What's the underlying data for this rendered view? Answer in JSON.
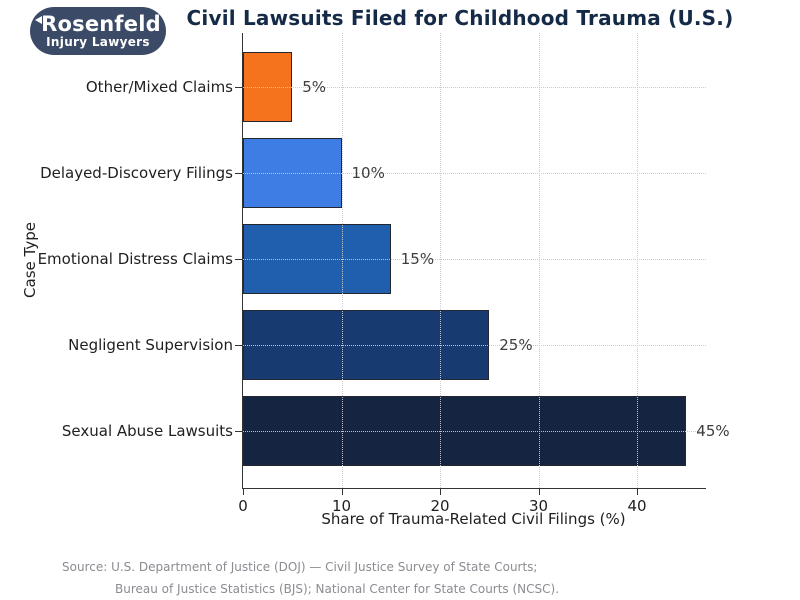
{
  "logo": {
    "line1": "Rosenfeld",
    "line2": "Injury Lawyers",
    "background_color": "#3b4a66"
  },
  "title": "Civil Lawsuits Filed for Childhood Trauma (U.S.)",
  "title_color": "#142a47",
  "chart_data": {
    "type": "bar",
    "orientation": "horizontal",
    "title": "Civil Lawsuits Filed for Childhood Trauma (U.S.)",
    "categories": [
      "Other/Mixed Claims",
      "Delayed-Discovery Filings",
      "Emotional Distress Claims",
      "Negligent Supervision",
      "Sexual Abuse Lawsuits"
    ],
    "values": [
      5,
      10,
      15,
      25,
      45
    ],
    "value_labels": [
      "5%",
      "10%",
      "15%",
      "25%",
      "45%"
    ],
    "bar_colors": [
      "#f4731c",
      "#3d7de4",
      "#1f5fae",
      "#173a70",
      "#152440"
    ],
    "bar_edge_color": "#23272f",
    "xlabel": "Share of Trauma-Related Civil Filings (%)",
    "ylabel": "Case Type",
    "xticks": [
      0,
      10,
      20,
      30,
      40
    ],
    "xlim": [
      0,
      47
    ],
    "grid": "dotted, both axes, drawn above bars",
    "legend": "none"
  },
  "source": {
    "line1": "Source: U.S. Department of Justice (DOJ) — Civil Justice Survey of State Courts;",
    "line2": "Bureau of Justice Statistics (BJS); National Center for State Courts (NCSC)."
  }
}
